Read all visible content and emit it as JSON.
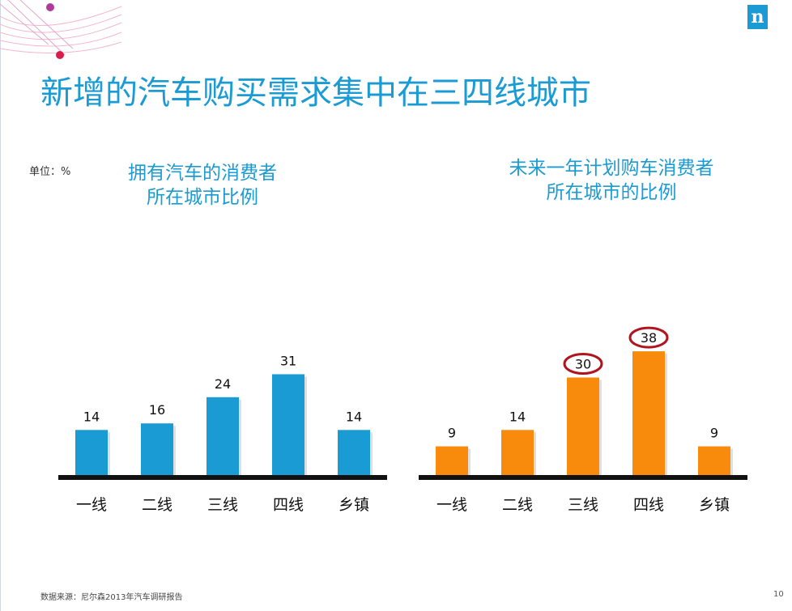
{
  "title": "新增的汽车购买需求集中在三四线城市",
  "unit_label": "单位：%",
  "logo_letter": "n",
  "footer_source": "数据来源：尼尔森2013年汽车调研报告",
  "page_number": "10",
  "colors": {
    "accent": "#1b9bd3",
    "orange": "#f98b0c",
    "highlight_ring": "#b0141f",
    "baseline": "#111111"
  },
  "chart_data": [
    {
      "type": "bar",
      "title": "拥有汽车的消费者\n所在城市比例",
      "title_lines": [
        "拥有汽车的消费者",
        "所在城市比例"
      ],
      "categories": [
        "一线",
        "二线",
        "三线",
        "四线",
        "乡镇"
      ],
      "values": [
        14,
        16,
        24,
        31,
        14
      ],
      "color": "#1b9bd3",
      "ylim": [
        0,
        40
      ],
      "grid": false,
      "highlighted": []
    },
    {
      "type": "bar",
      "title": "未来一年计划购车消费者\n所在城市的比例",
      "title_lines": [
        "未来一年计划购车消费者",
        "所在城市的比例"
      ],
      "categories": [
        "一线",
        "二线",
        "三线",
        "四线",
        "乡镇"
      ],
      "values": [
        9,
        14,
        30,
        38,
        9
      ],
      "color": "#f98b0c",
      "ylim": [
        0,
        40
      ],
      "grid": false,
      "highlighted": [
        "三线",
        "四线"
      ]
    }
  ]
}
